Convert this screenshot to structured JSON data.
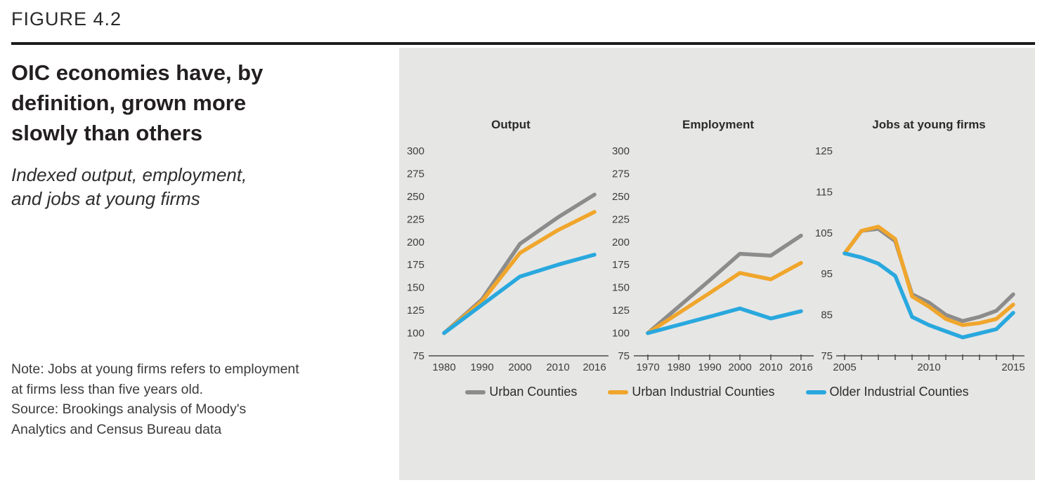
{
  "panel_left": {
    "figure_label": "FIGURE 4.2",
    "title_lines": [
      "OIC economies have, by",
      "definition, grown more",
      "slowly than others"
    ],
    "subtitle_lines": [
      "Indexed output, employment,",
      "and jobs at young firms"
    ],
    "note_lines": [
      "Note: Jobs at young firms refers to employment",
      "at firms less than five years old."
    ],
    "source_lines": [
      "Source: Brookings analysis of Moody's",
      "Analytics and Census Bureau data"
    ]
  },
  "colors": {
    "gray": "#8c8c8c",
    "orange": "#f0a62c",
    "blue": "#29a8de",
    "axis": "#4a4a4a",
    "tick_text": "#3d3d3d",
    "panel_bg": "#e6e6e5"
  },
  "legend": [
    {
      "label": "Urban Counties",
      "color_key": "gray"
    },
    {
      "label": "Urban Industrial Counties",
      "color_key": "orange"
    },
    {
      "label": "Older Industrial Counties",
      "color_key": "blue"
    }
  ],
  "chart_data": [
    {
      "type": "line",
      "title": "Output",
      "x": [
        "1980",
        "1990",
        "2000",
        "2010",
        "2016"
      ],
      "x_tick_labels": [
        "1980",
        "1990",
        "2000",
        "2010",
        "2016"
      ],
      "x_tick_marks": false,
      "ylim": [
        75,
        300
      ],
      "y_ticks": [
        300,
        275,
        250,
        225,
        200,
        175,
        150,
        125,
        100,
        75
      ],
      "grid": false,
      "series": [
        {
          "name": "Urban Counties",
          "color_key": "gray",
          "values": [
            100,
            137,
            198,
            227,
            252
          ]
        },
        {
          "name": "Urban Industrial Counties",
          "color_key": "orange",
          "values": [
            100,
            135,
            188,
            213,
            233
          ]
        },
        {
          "name": "Older Industrial Counties",
          "color_key": "blue",
          "values": [
            100,
            131,
            162,
            175,
            186
          ]
        }
      ]
    },
    {
      "type": "line",
      "title": "Employment",
      "x": [
        "1970",
        "1980",
        "1990",
        "2000",
        "2010",
        "2016"
      ],
      "x_tick_labels": [
        "1970",
        "1980",
        "1990",
        "2000",
        "2010",
        "2016"
      ],
      "x_tick_marks": true,
      "ylim": [
        75,
        300
      ],
      "y_ticks": [
        300,
        275,
        250,
        225,
        200,
        175,
        150,
        125,
        100,
        75
      ],
      "grid": false,
      "series": [
        {
          "name": "Urban Counties",
          "color_key": "gray",
          "values": [
            100,
            129,
            158,
            187,
            185,
            207
          ]
        },
        {
          "name": "Urban Industrial Counties",
          "color_key": "orange",
          "values": [
            100,
            122,
            144,
            166,
            159,
            177
          ]
        },
        {
          "name": "Older Industrial Counties",
          "color_key": "blue",
          "values": [
            100,
            109,
            118,
            127,
            116,
            124
          ]
        }
      ]
    },
    {
      "type": "line",
      "title": "Jobs at young firms",
      "x": [
        "2005",
        "2006",
        "2007",
        "2008",
        "2009",
        "2010",
        "2011",
        "2012",
        "2013",
        "2014",
        "2015"
      ],
      "x_tick_labels": [
        "2005",
        "",
        "",
        "",
        "",
        "2010",
        "",
        "",
        "",
        "",
        "2015"
      ],
      "x_tick_marks": true,
      "ylim": [
        75,
        125
      ],
      "y_ticks": [
        125,
        115,
        105,
        95,
        85,
        75
      ],
      "grid": false,
      "series": [
        {
          "name": "Urban Counties",
          "color_key": "gray",
          "values": [
            100,
            105.5,
            106,
            103,
            90,
            88,
            85,
            83.5,
            84.5,
            86,
            90
          ]
        },
        {
          "name": "Urban Industrial Counties",
          "color_key": "orange",
          "values": [
            100,
            105.5,
            106.5,
            103.5,
            89.5,
            87,
            84,
            82.5,
            83,
            84,
            87.5
          ]
        },
        {
          "name": "Older Industrial Counties",
          "color_key": "blue",
          "values": [
            100,
            99,
            97.5,
            94.5,
            84.5,
            82.5,
            81,
            79.5,
            80.5,
            81.5,
            85.5
          ]
        }
      ]
    }
  ]
}
